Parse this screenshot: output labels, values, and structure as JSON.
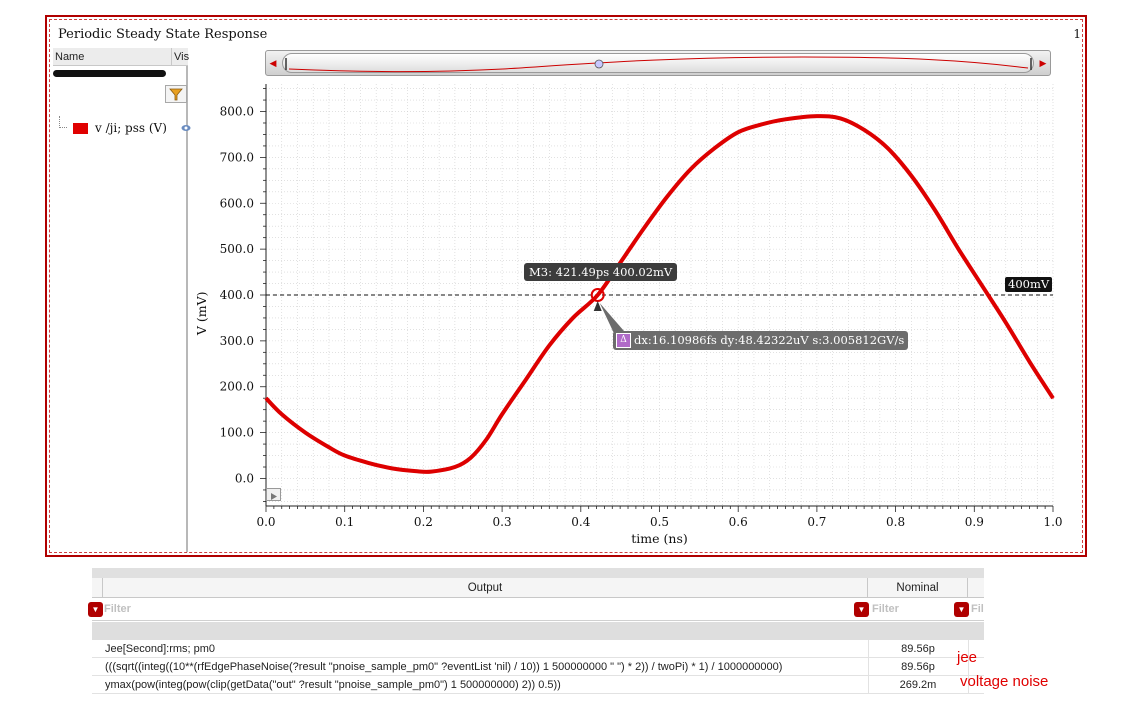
{
  "window": {
    "title": "Periodic Steady State Response",
    "number": "1"
  },
  "trace_panel": {
    "col_name": "Name",
    "col_vis": "Vis",
    "trace_label": "v /ji; pss (V)",
    "trace_color": "#e00000"
  },
  "marker": {
    "label": "M3: 421.49ps 400.02mV",
    "hline_label": "400mV",
    "delta_icon": "Δ",
    "delta_label": "dx:16.10986fs dy:48.42322uV s:3.005812GV/s"
  },
  "chart_data": {
    "type": "line",
    "xlabel": "time (ns)",
    "ylabel": "V (mV)",
    "xlim": [
      0.0,
      1.0
    ],
    "ylim": [
      -60,
      860
    ],
    "x_ticks": [
      "0.0",
      "0.1",
      "0.2",
      "0.3",
      "0.4",
      "0.5",
      "0.6",
      "0.7",
      "0.8",
      "0.9",
      "1.0"
    ],
    "y_ticks": [
      "0.0",
      "100.0",
      "200.0",
      "300.0",
      "400.0",
      "500.0",
      "600.0",
      "700.0",
      "800.0"
    ],
    "grid": true,
    "hline_value": 400,
    "marker_x": 0.42149,
    "marker_y": 400.02,
    "series": [
      {
        "color": "#dd0000",
        "x": [
          0.0,
          0.02,
          0.05,
          0.08,
          0.1,
          0.13,
          0.16,
          0.19,
          0.21,
          0.24,
          0.26,
          0.28,
          0.3,
          0.33,
          0.36,
          0.39,
          0.42149,
          0.45,
          0.48,
          0.51,
          0.54,
          0.57,
          0.6,
          0.63,
          0.66,
          0.7,
          0.73,
          0.76,
          0.79,
          0.82,
          0.85,
          0.88,
          0.91,
          0.94,
          0.97,
          1.0
        ],
        "y": [
          175,
          140,
          100,
          68,
          50,
          34,
          22,
          16,
          15,
          25,
          45,
          85,
          140,
          215,
          290,
          350,
          400.02,
          470,
          545,
          615,
          675,
          720,
          755,
          772,
          783,
          790,
          785,
          760,
          720,
          660,
          585,
          500,
          420,
          340,
          255,
          175
        ]
      }
    ]
  },
  "output_table": {
    "col_output": "Output",
    "col_nominal": "Nominal",
    "filter_placeholder": "Filter",
    "filter_placeholder_short": "Fil",
    "filter_icon": "▼",
    "rows": [
      {
        "expr": "Jee[Second]:rms; pm0",
        "nominal": "89.56p"
      },
      {
        "expr": "(((sqrt((integ((10**(rfEdgePhaseNoise(?result \"pnoise_sample_pm0\" ?eventList 'nil) / 10)) 1 500000000 \" \") * 2)) / twoPi) * 1) / 1000000000)",
        "nominal": "89.56p"
      },
      {
        "expr": "ymax(pow(integ(pow(clip(getData(\"out\" ?result \"pnoise_sample_pm0\") 1 500000000) 2)) 0.5))",
        "nominal": "269.2m"
      }
    ]
  },
  "notes": {
    "jee": "jee",
    "voltage_noise": "voltage noise"
  }
}
